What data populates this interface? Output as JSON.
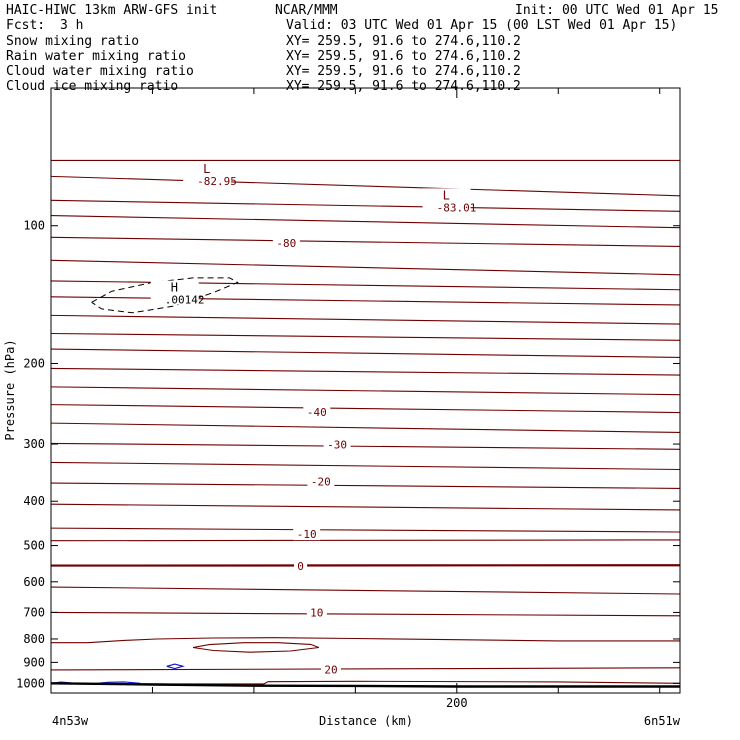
{
  "header": {
    "title": "HAIC-HIWC 13km ARW-GFS init",
    "org": "NCAR/MMM",
    "init": "Init: 00 UTC Wed 01 Apr 15",
    "fcst_label": "Fcst:",
    "fcst_value": "3 h",
    "valid": "Valid: 03 UTC Wed 01 Apr 15 (00 LST Wed 01 Apr 15)",
    "fields": [
      {
        "name": "Snow mixing ratio",
        "xy": "XY= 259.5, 91.6 to 274.6,110.2",
        "color": "#000000"
      },
      {
        "name": "Rain water mixing ratio",
        "xy": "XY= 259.5, 91.6 to 274.6,110.2",
        "color": "#e00000"
      },
      {
        "name": "Cloud water mixing ratio",
        "xy": "XY= 259.5, 91.6 to 274.6,110.2",
        "color": "#1010d0"
      },
      {
        "name": "Cloud ice mixing ratio",
        "xy": "XY= 259.5, 91.6 to 274.6,110.2",
        "color": "#000000"
      }
    ]
  },
  "chart_data": {
    "type": "contour",
    "title": "HAIC-HIWC 13km ARW-GFS init",
    "xlabel": "Distance (km)",
    "ylabel": "Pressure (hPa)",
    "xlim": [
      0,
      310
    ],
    "ylim": [
      1050,
      50
    ],
    "y_scale": "log",
    "y_ticks": [
      100,
      200,
      300,
      400,
      500,
      600,
      700,
      800,
      900,
      1000
    ],
    "x_ticks": [
      200
    ],
    "x_minor_ticks": [
      50,
      100,
      150,
      250,
      300
    ],
    "x_left_label": "4n53w",
    "x_right_label": "6n51w",
    "temperature_color": "#6e0000",
    "freezing_line_value": 0,
    "isotherms": [
      {
        "p_left": 72,
        "p_right": 72
      },
      {
        "p_left": 78,
        "p_right": 86
      },
      {
        "p_left": 88,
        "p_right": 93
      },
      {
        "p_left": 95,
        "p_right": 101
      },
      {
        "p_left": 106,
        "p_right": 111
      },
      {
        "p_left": 119,
        "p_right": 128
      },
      {
        "p_left": 132,
        "p_right": 138
      },
      {
        "p_left": 143,
        "p_right": 149
      },
      {
        "p_left": 157,
        "p_right": 164
      },
      {
        "p_left": 172,
        "p_right": 178
      },
      {
        "p_left": 186,
        "p_right": 194
      },
      {
        "p_left": 205,
        "p_right": 212
      },
      {
        "p_left": 225,
        "p_right": 234
      },
      {
        "p_left": 246,
        "p_right": 256
      },
      {
        "p_left": 270,
        "p_right": 283
      },
      {
        "p_left": 299,
        "p_right": 308
      },
      {
        "p_left": 329,
        "p_right": 341
      },
      {
        "p_left": 365,
        "p_right": 375
      },
      {
        "p_left": 406,
        "p_right": 418
      },
      {
        "p_left": 458,
        "p_right": 467
      },
      {
        "p_left": 488,
        "p_right": 486
      },
      {
        "p_left": 553,
        "p_right": 552
      },
      {
        "p_left": 616,
        "p_right": 638
      },
      {
        "p_left": 700,
        "p_right": 712
      },
      {
        "p_left": 935,
        "p_right": 925
      }
    ],
    "contour_labels": [
      {
        "text": "-80",
        "x": 116,
        "p": 109
      },
      {
        "text": "-40",
        "x": 131,
        "p": 255
      },
      {
        "text": "-30",
        "x": 141,
        "p": 301
      },
      {
        "text": "-20",
        "x": 133,
        "p": 362
      },
      {
        "text": "-10",
        "x": 126,
        "p": 472
      },
      {
        "text": "0",
        "x": 123,
        "p": 554
      },
      {
        "text": "10",
        "x": 131,
        "p": 700
      },
      {
        "text": "20",
        "x": 138,
        "p": 932
      }
    ],
    "extrema": [
      {
        "symbol": "L",
        "value": "-82.95",
        "x": 75,
        "p": 77
      },
      {
        "symbol": "L",
        "value": "-83.01",
        "x": 193,
        "p": 88
      },
      {
        "symbol": "H",
        "value": ".00142",
        "x": 59,
        "p": 140
      }
    ],
    "cloud_ice_contour": {
      "points": [
        [
          20,
          147
        ],
        [
          30,
          139
        ],
        [
          50,
          133
        ],
        [
          70,
          130
        ],
        [
          88,
          130
        ],
        [
          92,
          133
        ],
        [
          80,
          140
        ],
        [
          60,
          150
        ],
        [
          40,
          155
        ],
        [
          25,
          152
        ],
        [
          20,
          147
        ]
      ]
    },
    "cloud_water_contours": [
      [
        [
          57,
          918
        ],
        [
          61,
          908
        ],
        [
          65,
          918
        ],
        [
          61,
          928
        ],
        [
          57,
          918
        ]
      ],
      [
        [
          0,
          1000
        ],
        [
          5,
          994
        ],
        [
          10,
          998
        ]
      ],
      [
        [
          21,
          1002
        ],
        [
          28,
          995
        ],
        [
          36,
          993
        ],
        [
          44,
          1000
        ]
      ]
    ],
    "warm_closed_contour": [
      [
        70,
        835
      ],
      [
        78,
        823
      ],
      [
        95,
        815
      ],
      [
        112,
        815
      ],
      [
        128,
        822
      ],
      [
        132,
        835
      ],
      [
        118,
        850
      ],
      [
        98,
        855
      ],
      [
        80,
        848
      ],
      [
        70,
        835
      ]
    ],
    "warm_lower_contour": [
      [
        0,
        815
      ],
      [
        18,
        815
      ],
      [
        36,
        806
      ],
      [
        52,
        800
      ],
      [
        80,
        796
      ],
      [
        110,
        795
      ],
      [
        150,
        798
      ],
      [
        200,
        803
      ],
      [
        250,
        808
      ],
      [
        310,
        808
      ]
    ],
    "warm_bottom_contour": [
      [
        0,
        1003
      ],
      [
        105,
        1003
      ],
      [
        107,
        992
      ],
      [
        150,
        990
      ],
      [
        250,
        993
      ],
      [
        310,
        1000
      ]
    ],
    "terrain": [
      [
        0,
        1000
      ],
      [
        50,
        1006
      ],
      [
        100,
        1012
      ],
      [
        150,
        1013
      ],
      [
        200,
        1016
      ],
      [
        250,
        1016
      ],
      [
        310,
        1016
      ]
    ]
  }
}
